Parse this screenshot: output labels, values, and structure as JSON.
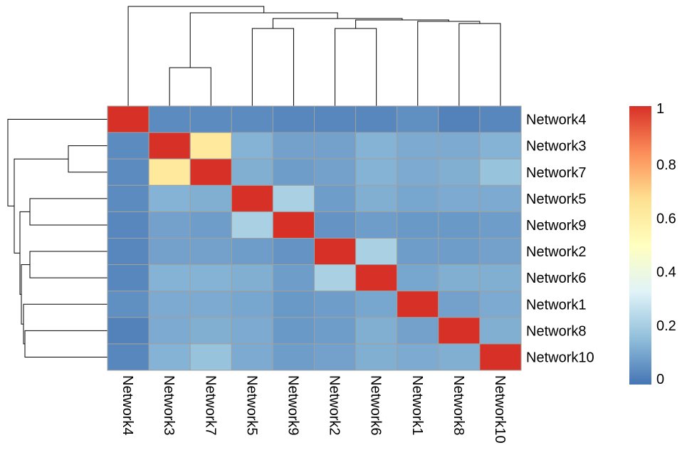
{
  "chart_data": {
    "type": "heatmap",
    "title": "",
    "xlabel": "",
    "ylabel": "",
    "row_labels": [
      "Network4",
      "Network3",
      "Network7",
      "Network5",
      "Network9",
      "Network2",
      "Network6",
      "Network1",
      "Network8",
      "Network10"
    ],
    "col_labels": [
      "Network4",
      "Network3",
      "Network7",
      "Network5",
      "Network9",
      "Network2",
      "Network6",
      "Network1",
      "Network8",
      "Network10"
    ],
    "values": [
      [
        1.0,
        0.05,
        0.05,
        0.05,
        0.04,
        0.04,
        0.04,
        0.06,
        0.03,
        0.04
      ],
      [
        0.05,
        1.0,
        0.62,
        0.14,
        0.1,
        0.1,
        0.14,
        0.12,
        0.12,
        0.14
      ],
      [
        0.05,
        0.62,
        1.0,
        0.13,
        0.09,
        0.1,
        0.14,
        0.12,
        0.13,
        0.18
      ],
      [
        0.05,
        0.14,
        0.13,
        1.0,
        0.22,
        0.09,
        0.13,
        0.11,
        0.12,
        0.12
      ],
      [
        0.04,
        0.1,
        0.09,
        0.22,
        1.0,
        0.07,
        0.09,
        0.08,
        0.08,
        0.09
      ],
      [
        0.04,
        0.1,
        0.1,
        0.09,
        0.07,
        1.0,
        0.22,
        0.09,
        0.09,
        0.1
      ],
      [
        0.04,
        0.14,
        0.14,
        0.13,
        0.09,
        0.22,
        1.0,
        0.11,
        0.13,
        0.13
      ],
      [
        0.06,
        0.12,
        0.12,
        0.11,
        0.08,
        0.09,
        0.11,
        1.0,
        0.1,
        0.12
      ],
      [
        0.03,
        0.12,
        0.13,
        0.12,
        0.08,
        0.09,
        0.13,
        0.1,
        1.0,
        0.13
      ],
      [
        0.04,
        0.14,
        0.18,
        0.12,
        0.09,
        0.1,
        0.13,
        0.12,
        0.13,
        1.0
      ]
    ],
    "color_scale": {
      "min": 0,
      "max": 1,
      "stops": [
        "#4575B4",
        "#91BFDB",
        "#E0F3F8",
        "#FFFFBF",
        "#FEE090",
        "#FC8D59",
        "#D73027"
      ],
      "ticks": [
        0,
        0.2,
        0.4,
        0.6,
        0.8,
        1
      ],
      "tick_labels": [
        "0",
        "0.2",
        "0.4",
        "0.6",
        "0.8",
        "1"
      ]
    },
    "cell_border_color": "#A0A0A0",
    "legend_placement": "right",
    "dendrograms": [
      "top",
      "left"
    ]
  }
}
